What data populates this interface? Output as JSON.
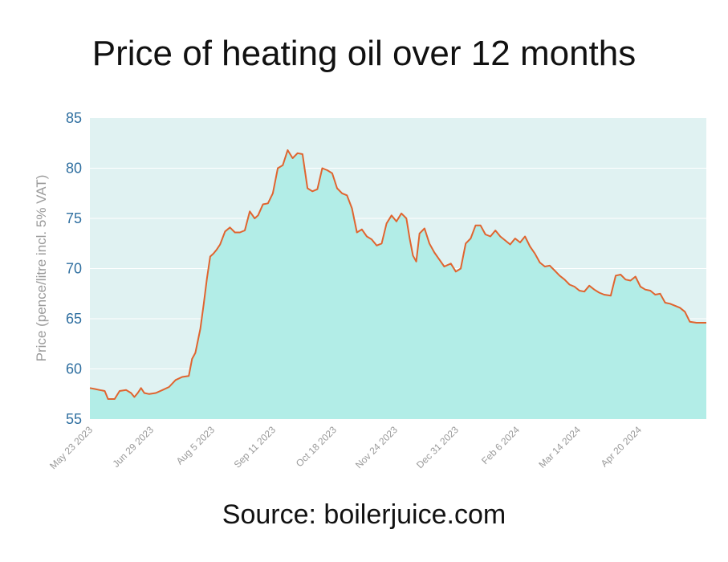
{
  "chart_data": {
    "type": "area",
    "title": "Price of heating oil over 12 months",
    "source": "Source: boilerjuice.com",
    "ylabel": "Price (pence/litre incl. 5% VAT)",
    "xlabel": "",
    "ylim": [
      55,
      85
    ],
    "yticks": [
      55,
      60,
      65,
      70,
      75,
      80,
      85
    ],
    "grid": true,
    "xlim": [
      "2023-05-23",
      "2024-05-31"
    ],
    "xtick_labels": [
      "May 23 2023",
      "Jun 29 2023",
      "Aug 5 2023",
      "Sep 11 2023",
      "Oct 18 2023",
      "Nov 24 2023",
      "Dec 31 2023",
      "Feb 6 2024",
      "Mar 14 2024",
      "Apr 20 2024"
    ],
    "xtick_dates": [
      "2023-05-23",
      "2023-06-29",
      "2023-08-05",
      "2023-09-11",
      "2023-10-18",
      "2023-11-24",
      "2023-12-31",
      "2024-02-06",
      "2024-03-14",
      "2024-04-20"
    ],
    "colors": {
      "line": "#e0642f",
      "fill": "#b2ede7",
      "plot_bg": "#e0f2f2",
      "grid": "#ffffff"
    },
    "series": [
      {
        "name": "",
        "points": [
          [
            "2023-05-23",
            58.1
          ],
          [
            "2023-05-26",
            58.0
          ],
          [
            "2023-05-29",
            57.9
          ],
          [
            "2023-06-01",
            57.8
          ],
          [
            "2023-06-03",
            57.0
          ],
          [
            "2023-06-07",
            57.0
          ],
          [
            "2023-06-10",
            57.8
          ],
          [
            "2023-06-14",
            57.9
          ],
          [
            "2023-06-17",
            57.6
          ],
          [
            "2023-06-19",
            57.2
          ],
          [
            "2023-06-21",
            57.6
          ],
          [
            "2023-06-23",
            58.1
          ],
          [
            "2023-06-25",
            57.6
          ],
          [
            "2023-06-28",
            57.5
          ],
          [
            "2023-07-02",
            57.6
          ],
          [
            "2023-07-06",
            57.9
          ],
          [
            "2023-07-10",
            58.2
          ],
          [
            "2023-07-14",
            58.9
          ],
          [
            "2023-07-18",
            59.2
          ],
          [
            "2023-07-22",
            59.3
          ],
          [
            "2023-07-24",
            61.0
          ],
          [
            "2023-07-26",
            61.6
          ],
          [
            "2023-07-29",
            64.0
          ],
          [
            "2023-07-31",
            66.4
          ],
          [
            "2023-08-02",
            69.0
          ],
          [
            "2023-08-04",
            71.2
          ],
          [
            "2023-08-06",
            71.5
          ],
          [
            "2023-08-08",
            71.9
          ],
          [
            "2023-08-10",
            72.4
          ],
          [
            "2023-08-13",
            73.7
          ],
          [
            "2023-08-16",
            74.1
          ],
          [
            "2023-08-19",
            73.6
          ],
          [
            "2023-08-22",
            73.6
          ],
          [
            "2023-08-25",
            73.8
          ],
          [
            "2023-08-28",
            75.7
          ],
          [
            "2023-08-31",
            75.0
          ],
          [
            "2023-09-02",
            75.3
          ],
          [
            "2023-09-05",
            76.4
          ],
          [
            "2023-09-08",
            76.5
          ],
          [
            "2023-09-11",
            77.5
          ],
          [
            "2023-09-14",
            80.0
          ],
          [
            "2023-09-17",
            80.3
          ],
          [
            "2023-09-20",
            81.8
          ],
          [
            "2023-09-23",
            81.0
          ],
          [
            "2023-09-26",
            81.5
          ],
          [
            "2023-09-29",
            81.4
          ],
          [
            "2023-10-02",
            78.0
          ],
          [
            "2023-10-05",
            77.7
          ],
          [
            "2023-10-08",
            77.9
          ],
          [
            "2023-10-11",
            80.0
          ],
          [
            "2023-10-14",
            79.8
          ],
          [
            "2023-10-17",
            79.5
          ],
          [
            "2023-10-20",
            78.0
          ],
          [
            "2023-10-23",
            77.5
          ],
          [
            "2023-10-26",
            77.3
          ],
          [
            "2023-10-29",
            76.0
          ],
          [
            "2023-11-01",
            73.6
          ],
          [
            "2023-11-04",
            73.9
          ],
          [
            "2023-11-07",
            73.2
          ],
          [
            "2023-11-10",
            72.9
          ],
          [
            "2023-11-13",
            72.3
          ],
          [
            "2023-11-16",
            72.5
          ],
          [
            "2023-11-19",
            74.5
          ],
          [
            "2023-11-22",
            75.3
          ],
          [
            "2023-11-25",
            74.7
          ],
          [
            "2023-11-28",
            75.5
          ],
          [
            "2023-12-01",
            75.0
          ],
          [
            "2023-12-03",
            73.0
          ],
          [
            "2023-12-05",
            71.3
          ],
          [
            "2023-12-07",
            70.7
          ],
          [
            "2023-12-09",
            73.5
          ],
          [
            "2023-12-12",
            74.0
          ],
          [
            "2023-12-15",
            72.5
          ],
          [
            "2023-12-18",
            71.6
          ],
          [
            "2023-12-21",
            70.9
          ],
          [
            "2023-12-24",
            70.2
          ],
          [
            "2023-12-28",
            70.5
          ],
          [
            "2023-12-31",
            69.7
          ],
          [
            "2024-01-03",
            70.0
          ],
          [
            "2024-01-06",
            72.5
          ],
          [
            "2024-01-09",
            73.0
          ],
          [
            "2024-01-12",
            74.3
          ],
          [
            "2024-01-15",
            74.3
          ],
          [
            "2024-01-18",
            73.4
          ],
          [
            "2024-01-21",
            73.2
          ],
          [
            "2024-01-24",
            73.8
          ],
          [
            "2024-01-27",
            73.2
          ],
          [
            "2024-01-30",
            72.8
          ],
          [
            "2024-02-02",
            72.4
          ],
          [
            "2024-02-05",
            73.0
          ],
          [
            "2024-02-08",
            72.6
          ],
          [
            "2024-02-11",
            73.2
          ],
          [
            "2024-02-14",
            72.2
          ],
          [
            "2024-02-17",
            71.5
          ],
          [
            "2024-02-20",
            70.6
          ],
          [
            "2024-02-23",
            70.2
          ],
          [
            "2024-02-26",
            70.3
          ],
          [
            "2024-02-29",
            69.8
          ],
          [
            "2024-03-03",
            69.3
          ],
          [
            "2024-03-06",
            68.9
          ],
          [
            "2024-03-09",
            68.4
          ],
          [
            "2024-03-12",
            68.2
          ],
          [
            "2024-03-15",
            67.8
          ],
          [
            "2024-03-18",
            67.7
          ],
          [
            "2024-03-21",
            68.3
          ],
          [
            "2024-03-24",
            67.9
          ],
          [
            "2024-03-27",
            67.6
          ],
          [
            "2024-03-30",
            67.4
          ],
          [
            "2024-04-03",
            67.3
          ],
          [
            "2024-04-06",
            69.3
          ],
          [
            "2024-04-09",
            69.4
          ],
          [
            "2024-04-12",
            68.9
          ],
          [
            "2024-04-15",
            68.8
          ],
          [
            "2024-04-18",
            69.2
          ],
          [
            "2024-04-21",
            68.2
          ],
          [
            "2024-04-24",
            67.9
          ],
          [
            "2024-04-27",
            67.8
          ],
          [
            "2024-04-30",
            67.4
          ],
          [
            "2024-05-03",
            67.5
          ],
          [
            "2024-05-06",
            66.6
          ],
          [
            "2024-05-09",
            66.5
          ],
          [
            "2024-05-12",
            66.3
          ],
          [
            "2024-05-15",
            66.1
          ],
          [
            "2024-05-18",
            65.7
          ],
          [
            "2024-05-21",
            64.7
          ],
          [
            "2024-05-25",
            64.6
          ]
        ]
      }
    ]
  }
}
